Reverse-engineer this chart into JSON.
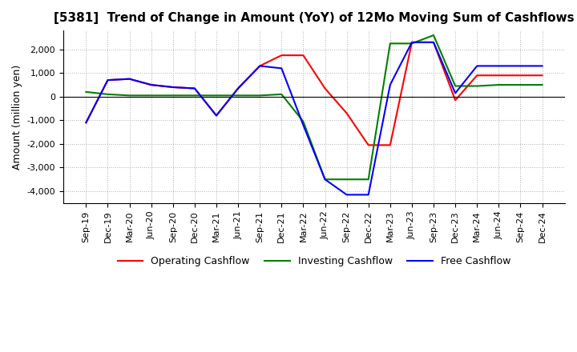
{
  "title": "[5381]  Trend of Change in Amount (YoY) of 12Mo Moving Sum of Cashflows",
  "ylabel": "Amount (million yen)",
  "ylim": [
    -4500,
    2800
  ],
  "yticks": [
    -4000,
    -3000,
    -2000,
    -1000,
    0,
    1000,
    2000
  ],
  "x_labels": [
    "Sep-19",
    "Dec-19",
    "Mar-20",
    "Jun-20",
    "Sep-20",
    "Dec-20",
    "Mar-21",
    "Jun-21",
    "Sep-21",
    "Dec-21",
    "Mar-22",
    "Jun-22",
    "Sep-22",
    "Dec-22",
    "Mar-23",
    "Jun-23",
    "Sep-23",
    "Dec-23",
    "Mar-24",
    "Jun-24",
    "Sep-24",
    "Dec-24"
  ],
  "operating": [
    -1100,
    700,
    750,
    500,
    400,
    350,
    -800,
    350,
    1300,
    1750,
    1750,
    350,
    -700,
    -2050,
    -2050,
    2300,
    2300,
    -150,
    900,
    900,
    900,
    900
  ],
  "investing": [
    200,
    100,
    50,
    50,
    50,
    50,
    50,
    50,
    50,
    100,
    -1050,
    -3500,
    -3500,
    -3500,
    2250,
    2250,
    2600,
    450,
    450,
    500,
    500,
    500
  ],
  "free": [
    -1100,
    700,
    750,
    500,
    400,
    350,
    -800,
    350,
    1300,
    1200,
    -1200,
    -3500,
    -4150,
    -4150,
    500,
    2300,
    2300,
    150,
    1300,
    1300,
    1300,
    1300
  ],
  "operating_color": "#ff0000",
  "investing_color": "#008000",
  "free_color": "#0000ff",
  "bg_color": "#ffffff",
  "grid_color": "#b0b0b0",
  "title_fontsize": 11,
  "label_fontsize": 9,
  "tick_fontsize": 8,
  "legend_fontsize": 9
}
